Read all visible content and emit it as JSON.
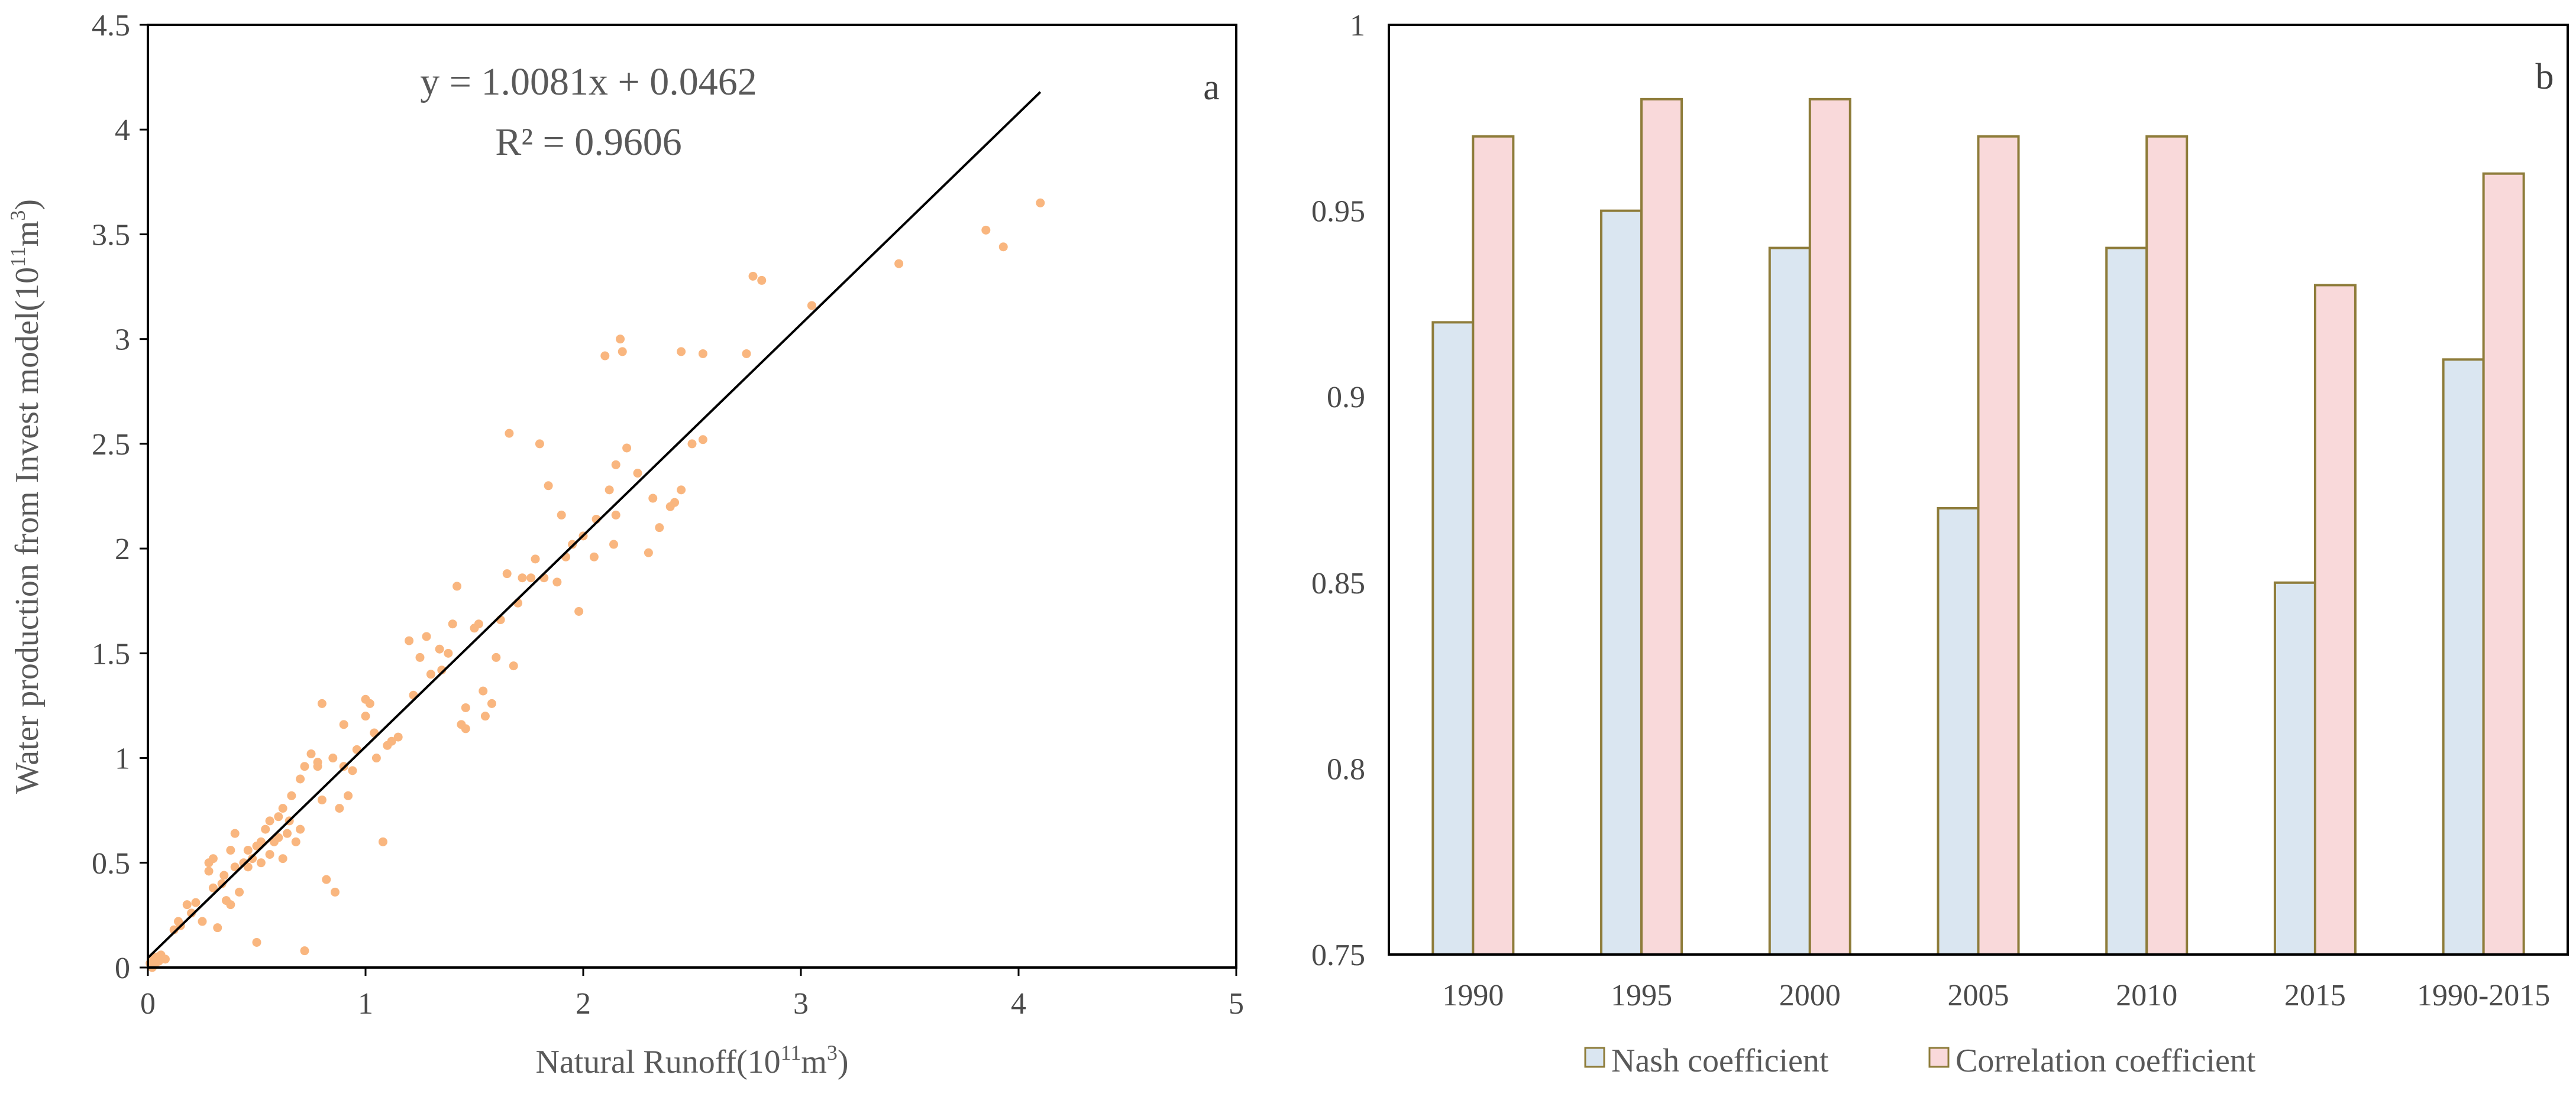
{
  "colors": {
    "scatter_point": "#F9B67F",
    "fit_line": "#000000",
    "nash_fill": "#DAE6F1",
    "corr_fill": "#F9D9DA",
    "bar_stroke": "#8E7C3A",
    "axis": "#000000"
  },
  "chart_data": [
    {
      "type": "scatter",
      "panel": "a",
      "xlabel_prefix": "Natural Runoff(10",
      "xlabel_sup": "11",
      "xlabel_suffix": "m",
      "xlabel_sup2": "3",
      "xlabel_close": ")",
      "ylabel_prefix": "Water production from Invest model(10",
      "ylabel_sup": "11",
      "ylabel_suffix": "m",
      "ylabel_sup2": "3",
      "ylabel_close": ")",
      "equation": "y = 1.0081x + 0.0462",
      "r_squared": "R² = 0.9606",
      "xlim": [
        0,
        5
      ],
      "ylim": [
        0,
        4.5
      ],
      "x_ticks": [
        "0",
        "1",
        "2",
        "3",
        "4",
        "5"
      ],
      "y_ticks": [
        "0",
        "0.5",
        "1",
        "1.5",
        "2",
        "2.5",
        "3",
        "3.5",
        "4",
        "4.5"
      ],
      "fit": {
        "slope": 1.0081,
        "intercept": 0.0462,
        "x_range": [
          0,
          4.1
        ]
      },
      "points": [
        [
          0.01,
          0.02
        ],
        [
          0.02,
          0.04
        ],
        [
          0.03,
          0.01
        ],
        [
          0.04,
          0.05
        ],
        [
          0.05,
          0.03
        ],
        [
          0.06,
          0.06
        ],
        [
          0.02,
          0.0
        ],
        [
          0.08,
          0.04
        ],
        [
          0.12,
          0.18
        ],
        [
          0.15,
          0.2
        ],
        [
          0.18,
          0.3
        ],
        [
          0.2,
          0.26
        ],
        [
          0.22,
          0.31
        ],
        [
          0.25,
          0.22
        ],
        [
          0.28,
          0.46
        ],
        [
          0.28,
          0.5
        ],
        [
          0.3,
          0.38
        ],
        [
          0.3,
          0.52
        ],
        [
          0.32,
          0.19
        ],
        [
          0.34,
          0.4
        ],
        [
          0.36,
          0.32
        ],
        [
          0.38,
          0.56
        ],
        [
          0.38,
          0.3
        ],
        [
          0.4,
          0.48
        ],
        [
          0.4,
          0.64
        ],
        [
          0.42,
          0.36
        ],
        [
          0.44,
          0.5
        ],
        [
          0.46,
          0.48
        ],
        [
          0.48,
          0.52
        ],
        [
          0.5,
          0.12
        ],
        [
          0.5,
          0.58
        ],
        [
          0.52,
          0.6
        ],
        [
          0.52,
          0.5
        ],
        [
          0.54,
          0.66
        ],
        [
          0.56,
          0.54
        ],
        [
          0.56,
          0.7
        ],
        [
          0.58,
          0.6
        ],
        [
          0.6,
          0.72
        ],
        [
          0.6,
          0.62
        ],
        [
          0.62,
          0.76
        ],
        [
          0.62,
          0.52
        ],
        [
          0.64,
          0.64
        ],
        [
          0.66,
          0.82
        ],
        [
          0.68,
          0.6
        ],
        [
          0.7,
          0.9
        ],
        [
          0.7,
          0.66
        ],
        [
          0.72,
          0.96
        ],
        [
          0.72,
          0.08
        ],
        [
          0.75,
          1.02
        ],
        [
          0.78,
          0.96
        ],
        [
          0.8,
          1.26
        ],
        [
          0.8,
          0.8
        ],
        [
          0.82,
          0.42
        ],
        [
          0.85,
          1.0
        ],
        [
          0.86,
          0.36
        ],
        [
          0.88,
          0.76
        ],
        [
          0.9,
          1.16
        ],
        [
          0.92,
          0.82
        ],
        [
          0.94,
          0.94
        ],
        [
          0.96,
          1.04
        ],
        [
          1.0,
          1.28
        ],
        [
          1.0,
          1.2
        ],
        [
          1.02,
          1.26
        ],
        [
          1.04,
          1.12
        ],
        [
          1.05,
          1.0
        ],
        [
          1.08,
          0.6
        ],
        [
          1.1,
          1.06
        ],
        [
          1.12,
          1.08
        ],
        [
          1.2,
          1.56
        ],
        [
          1.22,
          1.3
        ],
        [
          1.25,
          1.48
        ],
        [
          1.28,
          1.58
        ],
        [
          1.3,
          1.4
        ],
        [
          1.34,
          1.52
        ],
        [
          1.38,
          1.5
        ],
        [
          1.4,
          1.64
        ],
        [
          1.42,
          1.82
        ],
        [
          1.44,
          1.16
        ],
        [
          1.46,
          1.14
        ],
        [
          1.46,
          1.24
        ],
        [
          1.5,
          1.62
        ],
        [
          1.52,
          1.64
        ],
        [
          1.54,
          1.32
        ],
        [
          1.55,
          1.2
        ],
        [
          1.58,
          1.26
        ],
        [
          1.6,
          1.48
        ],
        [
          1.65,
          1.88
        ],
        [
          1.66,
          2.55
        ],
        [
          1.68,
          1.44
        ],
        [
          1.7,
          1.74
        ],
        [
          1.72,
          1.86
        ],
        [
          1.76,
          1.86
        ],
        [
          1.78,
          1.95
        ],
        [
          1.8,
          2.5
        ],
        [
          1.82,
          1.86
        ],
        [
          1.84,
          2.3
        ],
        [
          1.88,
          1.84
        ],
        [
          1.9,
          2.16
        ],
        [
          1.92,
          1.96
        ],
        [
          1.95,
          2.02
        ],
        [
          1.98,
          1.7
        ],
        [
          2.0,
          2.06
        ],
        [
          2.05,
          1.96
        ],
        [
          2.06,
          2.14
        ],
        [
          2.1,
          2.92
        ],
        [
          2.12,
          2.28
        ],
        [
          2.14,
          2.02
        ],
        [
          2.15,
          2.16
        ],
        [
          2.15,
          2.4
        ],
        [
          2.17,
          3.0
        ],
        [
          2.18,
          2.94
        ],
        [
          2.2,
          2.48
        ],
        [
          2.3,
          1.98
        ],
        [
          2.32,
          2.24
        ],
        [
          2.35,
          2.1
        ],
        [
          2.4,
          2.2
        ],
        [
          2.42,
          2.22
        ],
        [
          2.45,
          2.28
        ],
        [
          2.45,
          2.94
        ],
        [
          2.5,
          2.5
        ],
        [
          2.55,
          2.93
        ],
        [
          2.55,
          2.52
        ],
        [
          2.75,
          2.93
        ],
        [
          2.78,
          3.3
        ],
        [
          2.82,
          3.28
        ],
        [
          3.05,
          3.16
        ],
        [
          3.45,
          3.36
        ],
        [
          3.85,
          3.52
        ],
        [
          3.93,
          3.44
        ],
        [
          4.1,
          3.65
        ],
        [
          0.14,
          0.22
        ],
        [
          0.35,
          0.44
        ],
        [
          0.46,
          0.56
        ],
        [
          0.65,
          0.7
        ],
        [
          0.78,
          0.98
        ],
        [
          0.9,
          0.96
        ],
        [
          1.15,
          1.1
        ],
        [
          1.35,
          1.42
        ],
        [
          1.62,
          1.66
        ],
        [
          2.25,
          2.36
        ]
      ]
    },
    {
      "type": "bar",
      "panel": "b",
      "categories": [
        "1990",
        "1995",
        "2000",
        "2005",
        "2010",
        "2015",
        "1990-2015"
      ],
      "series": [
        {
          "name": "Nash coefficient",
          "values": [
            0.92,
            0.95,
            0.94,
            0.87,
            0.94,
            0.85,
            0.91
          ]
        },
        {
          "name": "Correlation coefficient",
          "values": [
            0.97,
            0.98,
            0.98,
            0.97,
            0.97,
            0.93,
            0.96
          ]
        }
      ],
      "ylim": [
        0.75,
        1
      ],
      "y_ticks": [
        "0.75",
        "0.8",
        "0.85",
        "0.9",
        "0.95",
        "1"
      ],
      "legend_position": "bottom"
    }
  ]
}
